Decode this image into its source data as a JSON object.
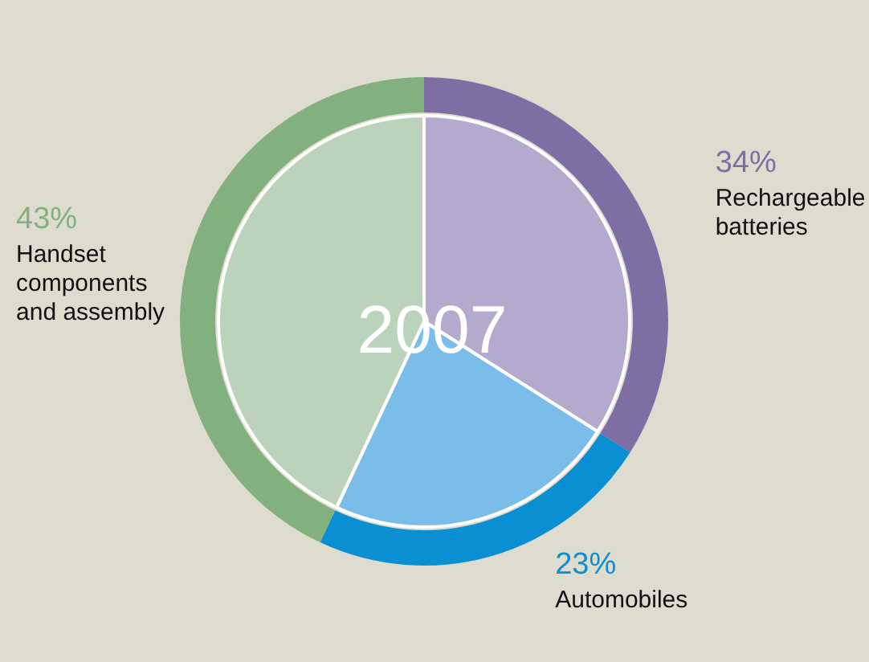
{
  "chart_data": {
    "type": "pie",
    "title": "2007",
    "categories": [
      "Rechargeable\nbatteries",
      "Automobiles",
      "Handset\ncomponents\nand assembly"
    ],
    "series": [
      {
        "colors": [
          "#b4aacd",
          "#7abde8",
          "#bad3ba"
        ],
        "values": [
          34,
          23,
          43
        ]
      },
      {
        "colors": [
          "#7e6ea3",
          "#0a8fd3",
          "#82b07e"
        ],
        "values": [
          34,
          23,
          43
        ],
        "value_labels": [
          "34%",
          "23%",
          "43%"
        ]
      }
    ]
  }
}
